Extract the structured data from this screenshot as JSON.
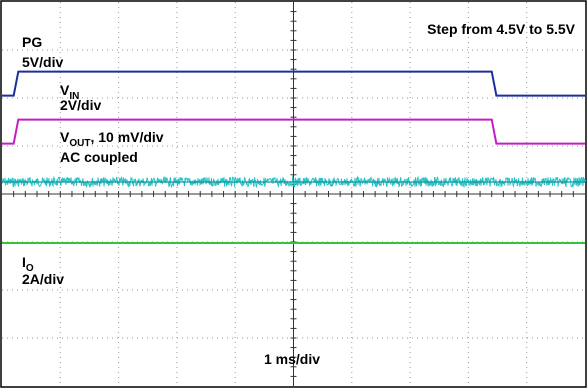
{
  "chart_data": {
    "type": "line",
    "title": "Step from 4.5V to 5.5V",
    "xlabel": "1 ms/div",
    "x_divisions": 10,
    "y_divisions": 8,
    "step_rise_div": 0.2,
    "step_fall_div": 8.4,
    "series": [
      {
        "name": "VIN",
        "label_main": "V",
        "label_sub": "IN",
        "scale_label": "2V/div",
        "color": "#1c2f9a",
        "low_level_div": 6.05,
        "high_level_div": 6.55,
        "shape": "step-up-then-down"
      },
      {
        "name": "VOUT",
        "label_main": "V",
        "label_sub": "OUT",
        "label_suffix": ", 10 mV/div",
        "coupling_label": "AC coupled",
        "color": "#c21ec4",
        "low_level_div": 5.05,
        "high_level_div": 5.55,
        "shape": "step-up-then-down"
      },
      {
        "name": "PG",
        "label_main": "PG",
        "scale_label": "5V/div",
        "color": "#28c4c8",
        "level_div": 4.25,
        "noise_band_div": 0.2,
        "shape": "flat-noisy"
      },
      {
        "name": "IO",
        "label_main": "I",
        "label_sub": "O",
        "scale_label": "2A/div",
        "color": "#33c43a",
        "level_div": 2.98,
        "shape": "flat"
      }
    ]
  }
}
